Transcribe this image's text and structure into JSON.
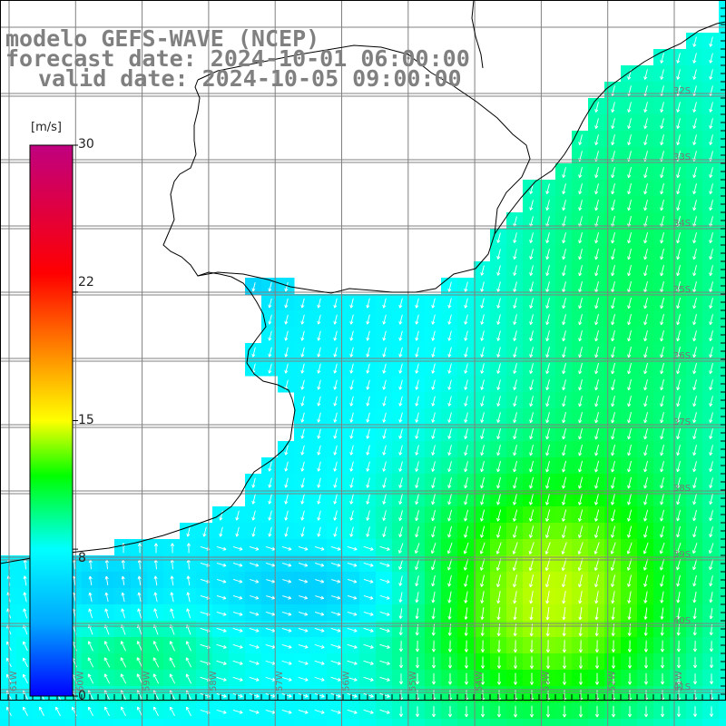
{
  "titles": {
    "model": "modelo GEFS-WAVE (NCEP)",
    "forecast": "forecast date: 2024-10-01 06:00:00",
    "valid": "valid date: 2024-10-05 09:00:00"
  },
  "colorbar": {
    "unit": "[m/s]",
    "min": 0,
    "max": 30,
    "ticks": [
      "30",
      "22",
      "15",
      "8",
      "0"
    ],
    "tick_values": [
      30,
      22,
      15,
      8,
      0
    ],
    "colors": [
      "#0000ff",
      "#00a8ff",
      "#00ffff",
      "#00ff80",
      "#00ff00",
      "#ffff00",
      "#ff8000",
      "#ff0000",
      "#c00080"
    ]
  },
  "axes": {
    "lon_labels": [
      "61W",
      "60W",
      "59W",
      "58W",
      "57W",
      "56W",
      "55W",
      "54W",
      "53W",
      "52W",
      "51W"
    ],
    "lat_labels": [
      "32S",
      "33S",
      "34S",
      "35S",
      "36S",
      "37S",
      "38S",
      "39S",
      "40S",
      "41S"
    ]
  },
  "legend_colors": {
    "land": "#ffffff",
    "coast": "#000000",
    "grid": "#808080",
    "arrows": "#ffffff"
  }
}
